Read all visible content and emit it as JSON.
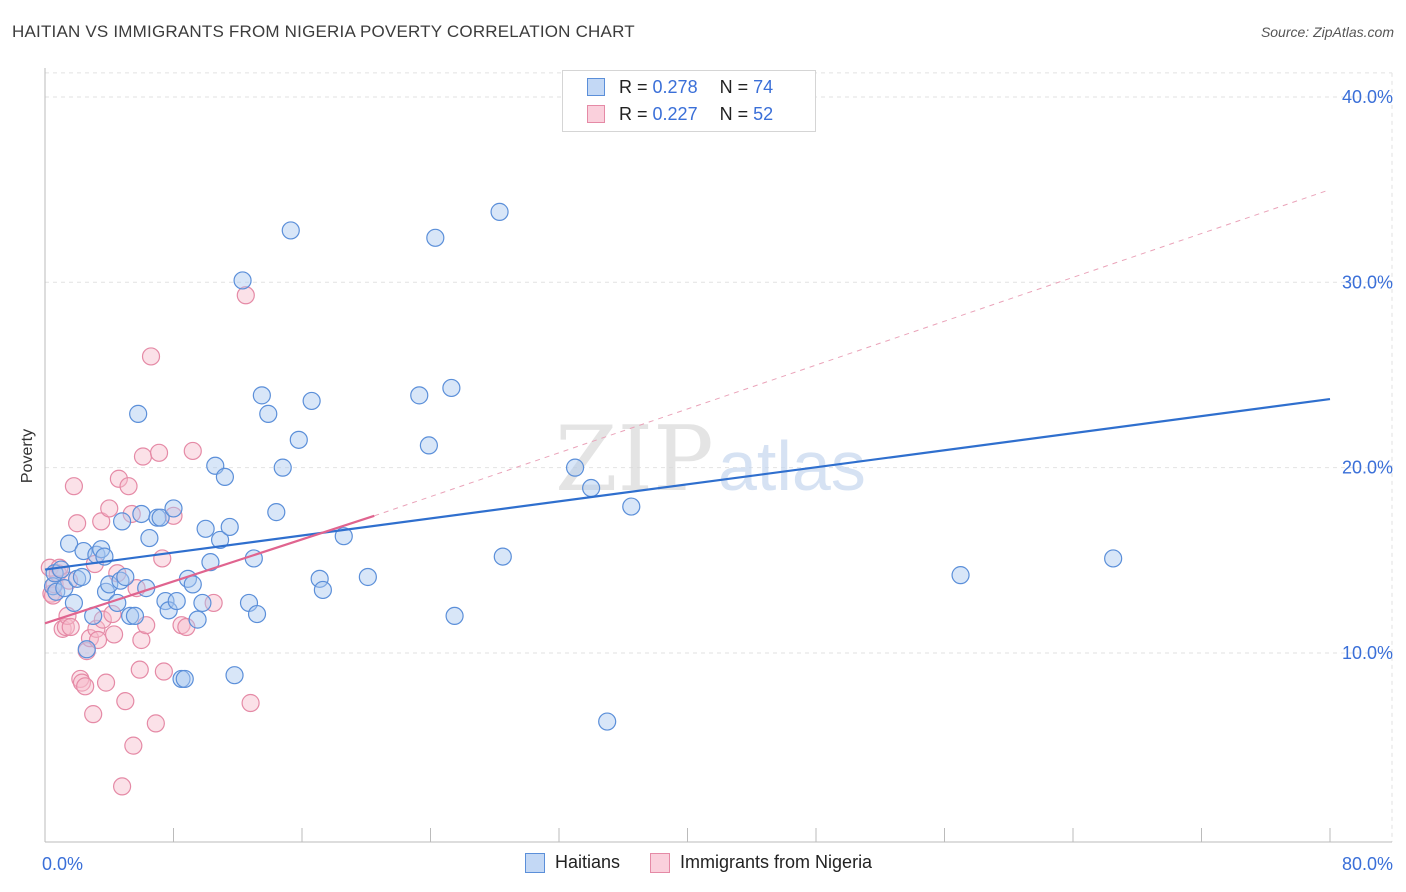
{
  "title": "HAITIAN VS IMMIGRANTS FROM NIGERIA POVERTY CORRELATION CHART",
  "source": "Source: ZipAtlas.com",
  "watermark": {
    "zip": "ZIP",
    "atlas": "atlas"
  },
  "legend_top": {
    "rows": [
      {
        "r_label": "R =",
        "r_value": "0.278",
        "n_label": "N =",
        "n_value": "74"
      },
      {
        "r_label": "R =",
        "r_value": "0.227",
        "n_label": "N =",
        "n_value": "52"
      }
    ]
  },
  "colors": {
    "blue_fill": "#a9c8f0",
    "blue_stroke": "#5b8fd9",
    "blue_line": "#2f6fce",
    "pink_fill": "#f7bccd",
    "pink_stroke": "#e58aa6",
    "pink_line": "#e0648f",
    "tick_text": "#3a6fd8",
    "grid": "#e2e2e2"
  },
  "chart_data": {
    "type": "scatter",
    "title": "HAITIAN VS IMMIGRANTS FROM NIGERIA POVERTY CORRELATION CHART",
    "xlabel": "",
    "ylabel": "Poverty",
    "xlim": [
      0,
      80
    ],
    "ylim": [
      0,
      40
    ],
    "x_tick_labels": [
      "0.0%",
      "80.0%"
    ],
    "y_ticks": [
      10,
      20,
      30,
      40
    ],
    "y_tick_labels": [
      "10.0%",
      "20.0%",
      "30.0%",
      "40.0%"
    ],
    "grid": true,
    "legend_position": "bottom",
    "series": [
      {
        "name": "Haitians",
        "r": 0.278,
        "n": 74,
        "trend": {
          "x": [
            0,
            80
          ],
          "y": [
            14.5,
            23.7
          ],
          "style": "solid"
        },
        "points": [
          [
            0.5,
            13.6
          ],
          [
            0.6,
            14.3
          ],
          [
            0.7,
            13.3
          ],
          [
            1.0,
            14.5
          ],
          [
            1.2,
            13.5
          ],
          [
            1.5,
            15.9
          ],
          [
            1.8,
            12.7
          ],
          [
            2.0,
            14.0
          ],
          [
            2.3,
            14.1
          ],
          [
            2.4,
            15.5
          ],
          [
            2.6,
            10.2
          ],
          [
            3.0,
            12.0
          ],
          [
            3.2,
            15.3
          ],
          [
            3.5,
            15.6
          ],
          [
            3.7,
            15.2
          ],
          [
            3.8,
            13.3
          ],
          [
            4.0,
            13.7
          ],
          [
            4.5,
            12.7
          ],
          [
            4.7,
            13.9
          ],
          [
            4.8,
            17.1
          ],
          [
            5.0,
            14.1
          ],
          [
            5.3,
            12.0
          ],
          [
            5.6,
            12.0
          ],
          [
            5.8,
            22.9
          ],
          [
            6.0,
            17.5
          ],
          [
            6.3,
            13.5
          ],
          [
            6.5,
            16.2
          ],
          [
            7.0,
            17.3
          ],
          [
            7.2,
            17.3
          ],
          [
            7.5,
            12.8
          ],
          [
            7.7,
            12.3
          ],
          [
            8.0,
            17.8
          ],
          [
            8.2,
            12.8
          ],
          [
            8.5,
            8.6
          ],
          [
            8.7,
            8.6
          ],
          [
            8.9,
            14.0
          ],
          [
            9.2,
            13.7
          ],
          [
            9.5,
            11.8
          ],
          [
            9.8,
            12.7
          ],
          [
            10.0,
            16.7
          ],
          [
            10.3,
            14.9
          ],
          [
            10.6,
            20.1
          ],
          [
            10.9,
            16.1
          ],
          [
            11.2,
            19.5
          ],
          [
            11.5,
            16.8
          ],
          [
            11.8,
            8.8
          ],
          [
            12.3,
            30.1
          ],
          [
            12.7,
            12.7
          ],
          [
            13.0,
            15.1
          ],
          [
            13.2,
            12.1
          ],
          [
            13.5,
            23.9
          ],
          [
            13.9,
            22.9
          ],
          [
            14.4,
            17.6
          ],
          [
            14.8,
            20.0
          ],
          [
            15.3,
            32.8
          ],
          [
            15.8,
            21.5
          ],
          [
            16.6,
            23.6
          ],
          [
            17.1,
            14.0
          ],
          [
            17.3,
            13.4
          ],
          [
            18.6,
            16.3
          ],
          [
            20.1,
            14.1
          ],
          [
            23.9,
            21.2
          ],
          [
            23.3,
            23.9
          ],
          [
            24.3,
            32.4
          ],
          [
            25.3,
            24.3
          ],
          [
            25.5,
            12.0
          ],
          [
            28.3,
            33.8
          ],
          [
            28.5,
            15.2
          ],
          [
            33.0,
            20.0
          ],
          [
            34.0,
            18.9
          ],
          [
            35.0,
            6.3
          ],
          [
            36.5,
            17.9
          ],
          [
            57.0,
            14.2
          ],
          [
            66.5,
            15.1
          ]
        ]
      },
      {
        "name": "Immigrants from Nigeria",
        "r": 0.227,
        "n": 52,
        "trend": {
          "x": [
            0,
            20.5
          ],
          "y": [
            11.6,
            17.4
          ],
          "style": "solid",
          "extension": {
            "x": [
              20.5,
              80
            ],
            "y": [
              17.4,
              35.0
            ],
            "style": "dashed"
          }
        },
        "points": [
          [
            0.3,
            14.6
          ],
          [
            0.4,
            13.2
          ],
          [
            0.5,
            13.1
          ],
          [
            0.6,
            13.7
          ],
          [
            0.8,
            14.3
          ],
          [
            0.9,
            14.6
          ],
          [
            1.1,
            11.3
          ],
          [
            1.3,
            11.4
          ],
          [
            1.4,
            12.0
          ],
          [
            1.6,
            11.4
          ],
          [
            1.8,
            19.0
          ],
          [
            2.0,
            17.0
          ],
          [
            2.2,
            8.6
          ],
          [
            2.3,
            8.4
          ],
          [
            2.5,
            8.2
          ],
          [
            2.6,
            10.1
          ],
          [
            2.8,
            10.8
          ],
          [
            3.0,
            6.7
          ],
          [
            3.2,
            11.3
          ],
          [
            3.3,
            10.7
          ],
          [
            3.5,
            17.1
          ],
          [
            3.6,
            11.8
          ],
          [
            3.8,
            8.4
          ],
          [
            4.0,
            17.8
          ],
          [
            4.2,
            12.1
          ],
          [
            4.3,
            11.0
          ],
          [
            4.5,
            14.3
          ],
          [
            4.6,
            19.4
          ],
          [
            4.8,
            2.8
          ],
          [
            5.0,
            7.4
          ],
          [
            5.2,
            19.0
          ],
          [
            5.4,
            17.5
          ],
          [
            5.5,
            5.0
          ],
          [
            5.7,
            13.5
          ],
          [
            5.9,
            9.1
          ],
          [
            6.0,
            10.7
          ],
          [
            6.1,
            20.6
          ],
          [
            6.3,
            11.5
          ],
          [
            6.6,
            26.0
          ],
          [
            6.9,
            6.2
          ],
          [
            7.1,
            20.8
          ],
          [
            7.3,
            15.1
          ],
          [
            7.4,
            9.0
          ],
          [
            8.0,
            17.4
          ],
          [
            8.5,
            11.5
          ],
          [
            8.8,
            11.4
          ],
          [
            9.2,
            20.9
          ],
          [
            10.5,
            12.7
          ],
          [
            12.5,
            29.3
          ],
          [
            12.8,
            7.3
          ],
          [
            3.1,
            14.8
          ],
          [
            1.5,
            13.9
          ]
        ]
      }
    ]
  },
  "bottom_legend": {
    "items": [
      "Haitians",
      "Immigrants from Nigeria"
    ]
  }
}
